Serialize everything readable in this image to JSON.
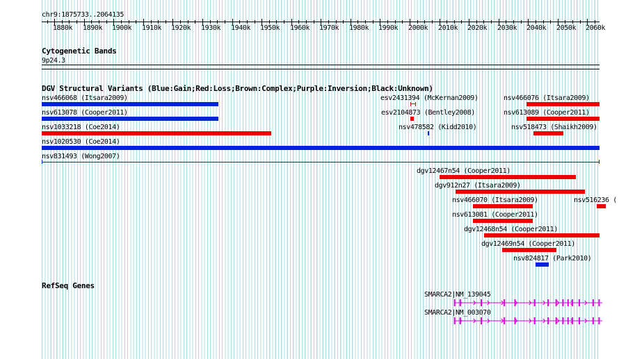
{
  "locus": "chr9:1875733..2064135",
  "ruler_ticks": [
    "1880k",
    "1890k",
    "1900k",
    "1910k",
    "1920k",
    "1930k",
    "1940k",
    "1950k",
    "1960k",
    "1970k",
    "1980k",
    "1990k",
    "2000k",
    "2010k",
    "2020k",
    "2030k",
    "2040k",
    "2050k",
    "2060k"
  ],
  "cytoband": {
    "title": "Cytogenetic Bands",
    "band": "9p24.3"
  },
  "dgv": {
    "title": "DGV Structural Variants (Blue:Gain;Red:Loss;Brown:Complex;Purple:Inversion;Black:Unknown)",
    "colors": {
      "gain": "#0022dd",
      "loss": "#ee0000"
    },
    "variants": [
      {
        "id": "nsv466068",
        "label": "nsv466068 (Itsara2009)",
        "type": "gain",
        "start": 1875733,
        "end": 1935500
      },
      {
        "id": "nsv613078",
        "label": "nsv613078 (Cooper2011)",
        "type": "gain",
        "start": 1875733,
        "end": 1935500
      },
      {
        "id": "nsv1033218",
        "label": "nsv1033218 (Coe2014)",
        "type": "loss",
        "start": 1875733,
        "end": 1953300
      },
      {
        "id": "nsv1020530",
        "label": "nsv1020530 (Coe2014)",
        "type": "gain",
        "start": 1875733,
        "end": 2064135
      },
      {
        "id": "nsv831493",
        "label": "nsv831493 (Wong2007)",
        "type": "gain",
        "start": 1875733,
        "end": 2064135,
        "thin": true
      },
      {
        "id": "esv2431394",
        "label": "esv2431394 (McKernan2009)",
        "type": "loss",
        "start": 2000200,
        "end": 2002200,
        "bracket": true
      },
      {
        "id": "esv2104873",
        "label": "esv2104873 (Bentley2008)",
        "type": "loss",
        "start": 2000200,
        "end": 2001400
      },
      {
        "id": "nsv478582",
        "label": "nsv478582 (Kidd2010)",
        "type": "gain",
        "start": 2006200,
        "end": 2006700
      },
      {
        "id": "nsv466076",
        "label": "nsv466076 (Itsara2009)",
        "type": "loss",
        "start": 2039400,
        "end": 2064135
      },
      {
        "id": "nsv613089",
        "label": "nsv613089 (Cooper2011)",
        "type": "loss",
        "start": 2039400,
        "end": 2064135
      },
      {
        "id": "nsv518473",
        "label": "nsv518473 (Shaikh2009)",
        "type": "loss",
        "start": 2041800,
        "end": 2051800
      },
      {
        "id": "dgv12467n54",
        "label": "dgv12467n54 (Cooper2011)",
        "type": "loss",
        "start": 2010000,
        "end": 2064135,
        "clip_end": 2056000
      },
      {
        "id": "dgv912n27",
        "label": "dgv912n27 (Itsara2009)",
        "type": "loss",
        "start": 2015400,
        "end": 2064135,
        "clip_end": 2059200
      },
      {
        "id": "nsv466070",
        "label": "nsv466070 (Itsara2009)",
        "type": "loss",
        "start": 2021400,
        "end": 2041600
      },
      {
        "id": "nsv516236",
        "label": "nsv516236 (",
        "type": "loss",
        "start": 2063200,
        "end": 2066200
      },
      {
        "id": "nsv613081",
        "label": "nsv613081 (Cooper2011)",
        "type": "loss",
        "start": 2021400,
        "end": 2041600
      },
      {
        "id": "dgv12468n54",
        "label": "dgv12468n54 (Cooper2011)",
        "type": "loss",
        "start": 2025200,
        "end": 2064135
      },
      {
        "id": "dgv12469n54",
        "label": "dgv12469n54 (Cooper2011)",
        "type": "loss",
        "start": 2031200,
        "end": 2049600
      },
      {
        "id": "nsv824817",
        "label": "nsv824817 (Park2010)",
        "type": "gain",
        "start": 2042600,
        "end": 2047000
      }
    ]
  },
  "refseq": {
    "title": "RefSeq Genes",
    "color": "#dd00dd",
    "genes": [
      {
        "label": "SMARCA2|NM_139045",
        "start": 2015200,
        "end": 2066000
      },
      {
        "label": "SMARCA2|NM_003070",
        "start": 2015200,
        "end": 2066000
      }
    ],
    "exons": [
      2015200,
      2017100,
      2024200,
      2032000,
      2035600,
      2042200,
      2046800,
      2049500,
      2051800,
      2053500,
      2055000,
      2057300,
      2062000,
      2064000
    ]
  }
}
